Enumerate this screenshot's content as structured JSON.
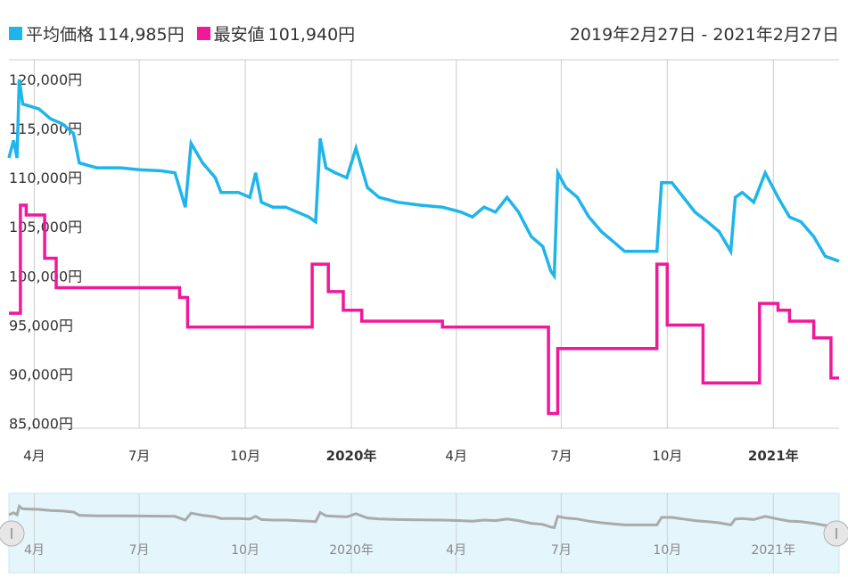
{
  "legend": {
    "avg_label": "平均価格",
    "avg_value": "114,985円",
    "min_label": "最安値",
    "min_value": "101,940円"
  },
  "date_range": "2019年2月27日 - 2021年2月27日",
  "colors": {
    "avg": "#1fb5ea",
    "min": "#f0199a",
    "grid": "#cccccc",
    "nav_bg": "#e4f5fc",
    "nav_line": "#aaaaaa"
  },
  "chart_data": {
    "type": "line",
    "y_ticks": [
      {
        "v": 120000,
        "label": "120,000円"
      },
      {
        "v": 115000,
        "label": "115,000円"
      },
      {
        "v": 110000,
        "label": "110,000円"
      },
      {
        "v": 105000,
        "label": "105,000円"
      },
      {
        "v": 100000,
        "label": "100,000円"
      },
      {
        "v": 95000,
        "label": "95,000円"
      },
      {
        "v": 90000,
        "label": "90,000円"
      },
      {
        "v": 85000,
        "label": "85,000円"
      }
    ],
    "x_ticks": [
      {
        "x": "2019-04-01",
        "label": "4月",
        "bold": false
      },
      {
        "x": "2019-07-01",
        "label": "7月",
        "bold": false
      },
      {
        "x": "2019-10-01",
        "label": "10月",
        "bold": false
      },
      {
        "x": "2020-01-01",
        "label": "2020年",
        "bold": true
      },
      {
        "x": "2020-04-01",
        "label": "4月",
        "bold": false
      },
      {
        "x": "2020-07-01",
        "label": "7月",
        "bold": false
      },
      {
        "x": "2020-10-01",
        "label": "10月",
        "bold": false
      },
      {
        "x": "2021-01-01",
        "label": "2021年",
        "bold": true
      }
    ],
    "ylim": [
      84500,
      122000
    ],
    "xlim": [
      "2019-03-10",
      "2021-02-27"
    ],
    "series": [
      {
        "name": "平均価格",
        "points": [
          [
            "2019-03-10",
            112000
          ],
          [
            "2019-03-14",
            113800
          ],
          [
            "2019-03-17",
            112000
          ],
          [
            "2019-03-19",
            120000
          ],
          [
            "2019-03-22",
            117500
          ],
          [
            "2019-04-05",
            117000
          ],
          [
            "2019-04-15",
            116000
          ],
          [
            "2019-04-25",
            115500
          ],
          [
            "2019-05-05",
            114500
          ],
          [
            "2019-05-10",
            111500
          ],
          [
            "2019-05-25",
            111000
          ],
          [
            "2019-06-15",
            111000
          ],
          [
            "2019-07-01",
            110800
          ],
          [
            "2019-07-20",
            110700
          ],
          [
            "2019-08-01",
            110500
          ],
          [
            "2019-08-10",
            107000
          ],
          [
            "2019-08-15",
            113500
          ],
          [
            "2019-08-25",
            111500
          ],
          [
            "2019-09-05",
            110000
          ],
          [
            "2019-09-10",
            108500
          ],
          [
            "2019-09-25",
            108500
          ],
          [
            "2019-10-05",
            108000
          ],
          [
            "2019-10-10",
            110500
          ],
          [
            "2019-10-15",
            107500
          ],
          [
            "2019-10-25",
            107000
          ],
          [
            "2019-11-05",
            107000
          ],
          [
            "2019-11-15",
            106500
          ],
          [
            "2019-11-25",
            106000
          ],
          [
            "2019-12-01",
            105500
          ],
          [
            "2019-12-05",
            114000
          ],
          [
            "2019-12-10",
            111000
          ],
          [
            "2019-12-18",
            110500
          ],
          [
            "2019-12-28",
            110000
          ],
          [
            "2020-01-05",
            113000
          ],
          [
            "2020-01-15",
            109000
          ],
          [
            "2020-01-25",
            108000
          ],
          [
            "2020-02-10",
            107500
          ],
          [
            "2020-03-01",
            107200
          ],
          [
            "2020-03-20",
            107000
          ],
          [
            "2020-04-05",
            106500
          ],
          [
            "2020-04-15",
            106000
          ],
          [
            "2020-04-25",
            107000
          ],
          [
            "2020-05-05",
            106500
          ],
          [
            "2020-05-15",
            108000
          ],
          [
            "2020-05-25",
            106500
          ],
          [
            "2020-06-05",
            104000
          ],
          [
            "2020-06-15",
            103000
          ],
          [
            "2020-06-22",
            100500
          ],
          [
            "2020-06-25",
            100000
          ],
          [
            "2020-06-28",
            110500
          ],
          [
            "2020-07-05",
            109000
          ],
          [
            "2020-07-15",
            108000
          ],
          [
            "2020-07-25",
            106000
          ],
          [
            "2020-08-05",
            104500
          ],
          [
            "2020-08-15",
            103500
          ],
          [
            "2020-08-25",
            102500
          ],
          [
            "2020-09-10",
            102500
          ],
          [
            "2020-09-22",
            102500
          ],
          [
            "2020-09-26",
            109500
          ],
          [
            "2020-10-05",
            109500
          ],
          [
            "2020-10-15",
            108000
          ],
          [
            "2020-10-25",
            106500
          ],
          [
            "2020-11-05",
            105500
          ],
          [
            "2020-11-15",
            104500
          ],
          [
            "2020-11-25",
            102500
          ],
          [
            "2020-11-29",
            108000
          ],
          [
            "2020-12-05",
            108500
          ],
          [
            "2020-12-15",
            107500
          ],
          [
            "2020-12-25",
            110500
          ],
          [
            "2021-01-05",
            108000
          ],
          [
            "2021-01-15",
            106000
          ],
          [
            "2021-01-25",
            105500
          ],
          [
            "2021-02-05",
            104000
          ],
          [
            "2021-02-15",
            102000
          ],
          [
            "2021-02-27",
            101500
          ]
        ]
      },
      {
        "name": "最安値",
        "step": true,
        "points": [
          [
            "2019-03-10",
            96200
          ],
          [
            "2019-03-20",
            107200
          ],
          [
            "2019-03-25",
            106200
          ],
          [
            "2019-04-10",
            101800
          ],
          [
            "2019-04-20",
            98800
          ],
          [
            "2019-08-05",
            97800
          ],
          [
            "2019-08-12",
            94800
          ],
          [
            "2019-11-28",
            101200
          ],
          [
            "2019-12-12",
            98400
          ],
          [
            "2019-12-25",
            96500
          ],
          [
            "2020-01-10",
            95400
          ],
          [
            "2020-03-20",
            94800
          ],
          [
            "2020-06-20",
            86000
          ],
          [
            "2020-06-28",
            92600
          ],
          [
            "2020-09-22",
            101200
          ],
          [
            "2020-10-01",
            95000
          ],
          [
            "2020-11-01",
            89100
          ],
          [
            "2020-12-20",
            97200
          ],
          [
            "2021-01-05",
            96500
          ],
          [
            "2021-01-15",
            95400
          ],
          [
            "2021-02-05",
            93700
          ],
          [
            "2021-02-20",
            89600
          ],
          [
            "2021-02-27",
            89600
          ]
        ]
      }
    ]
  }
}
